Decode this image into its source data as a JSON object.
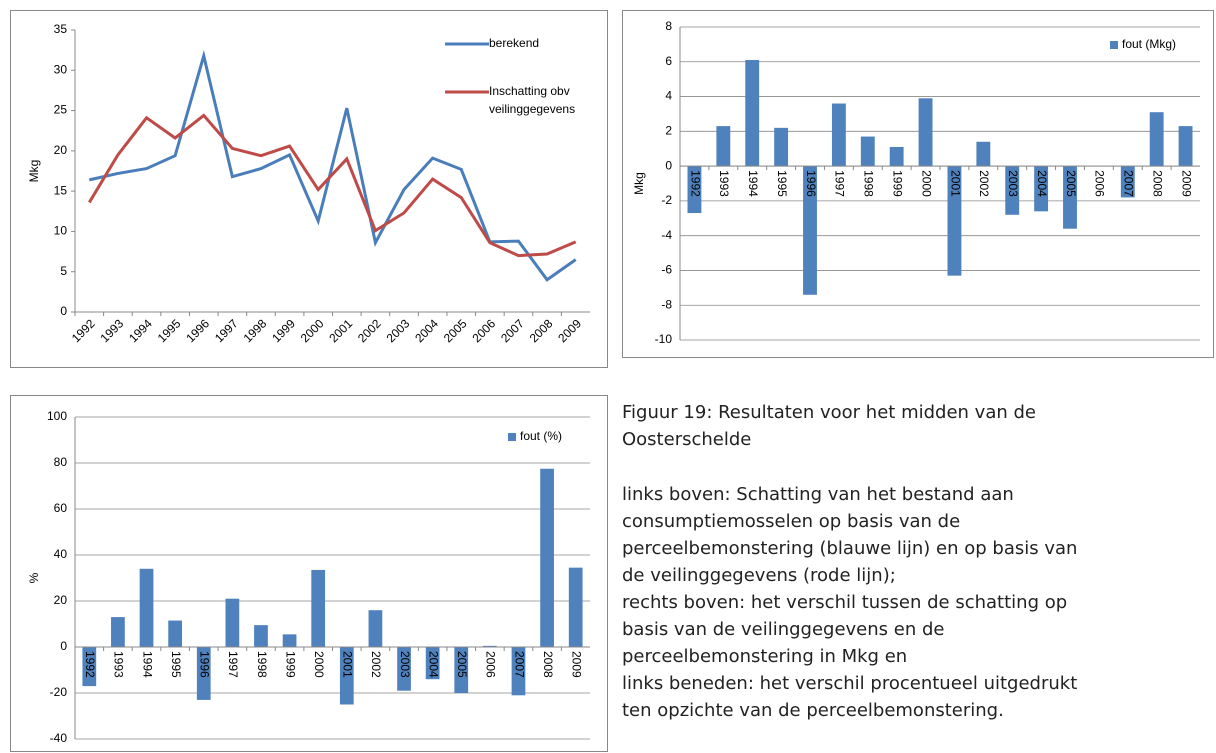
{
  "chart_data": [
    {
      "type": "line",
      "y_label": "Mkg",
      "categories": [
        "1992",
        "1993",
        "1994",
        "1995",
        "1996",
        "1997",
        "1998",
        "1999",
        "2000",
        "2001",
        "2002",
        "2003",
        "2004",
        "2005",
        "2006",
        "2007",
        "2008",
        "2009"
      ],
      "series": [
        {
          "name": "berekend",
          "color": "#4a7ebb",
          "values": [
            16.4,
            17.2,
            17.8,
            19.4,
            31.8,
            16.8,
            17.8,
            19.5,
            11.3,
            25.3,
            8.6,
            15.2,
            19.1,
            17.7,
            8.7,
            8.8,
            4.0,
            6.5
          ]
        },
        {
          "name": "Inschatting obv veilinggegevens",
          "color": "#be4b48",
          "values": [
            13.6,
            19.5,
            24.1,
            21.6,
            24.4,
            20.3,
            19.4,
            20.6,
            15.2,
            19.0,
            10.1,
            12.3,
            16.5,
            14.2,
            8.6,
            7.0,
            7.2,
            8.7
          ]
        }
      ],
      "ylim": [
        0,
        35
      ],
      "yticks": [
        0,
        5,
        10,
        15,
        20,
        25,
        30,
        35
      ],
      "grid": false,
      "legend": "upper right"
    },
    {
      "type": "bar",
      "y_label": "Mkg",
      "categories": [
        "1992",
        "1993",
        "1994",
        "1995",
        "1996",
        "1997",
        "1998",
        "1999",
        "2000",
        "2001",
        "2002",
        "2003",
        "2004",
        "2005",
        "2006",
        "2007",
        "2008",
        "2009"
      ],
      "series": [
        {
          "name": "fout (Mkg)",
          "color": "#4f81bd",
          "values": [
            -2.7,
            2.3,
            6.1,
            2.2,
            -7.4,
            3.6,
            1.7,
            1.1,
            3.9,
            -6.3,
            1.4,
            -2.8,
            -2.6,
            -3.6,
            0,
            -1.8,
            3.1,
            2.3
          ]
        }
      ],
      "ylim": [
        -10,
        8
      ],
      "yticks": [
        -10,
        -8,
        -6,
        -4,
        -2,
        0,
        2,
        4,
        6,
        8
      ],
      "grid": true,
      "legend": "upper right"
    },
    {
      "type": "bar",
      "y_label": "%",
      "categories": [
        "1992",
        "1993",
        "1994",
        "1995",
        "1996",
        "1997",
        "1998",
        "1999",
        "2000",
        "2001",
        "2002",
        "2003",
        "2004",
        "2005",
        "2006",
        "2007",
        "2008",
        "2009"
      ],
      "series": [
        {
          "name": "fout (%)",
          "color": "#4f81bd",
          "values": [
            -17,
            13,
            34,
            11.5,
            -23,
            21,
            9.5,
            5.5,
            33.5,
            -25,
            16,
            -19,
            -14,
            -20,
            0.5,
            -21,
            77.5,
            34.5
          ]
        }
      ],
      "ylim": [
        -40,
        100
      ],
      "yticks": [
        -40,
        -20,
        0,
        20,
        40,
        60,
        80,
        100
      ],
      "grid": true,
      "legend": "upper right"
    }
  ],
  "caption": {
    "title_lines": [
      "Figuur 19: Resultaten voor het midden van de",
      "Oosterschelde"
    ],
    "body_lines": [
      "links boven: Schatting van het bestand aan",
      "consumptiemosselen op basis van de",
      "perceelbemonstering (blauwe lijn) en op basis van",
      "de veilinggegevens (rode lijn);",
      "rechts boven: het verschil tussen de schatting op",
      "basis van de veilinggegevens en de",
      "perceelbemonstering in Mkg en",
      "links beneden: het verschil procentueel uitgedrukt",
      "ten opzichte van de perceelbemonstering."
    ]
  }
}
